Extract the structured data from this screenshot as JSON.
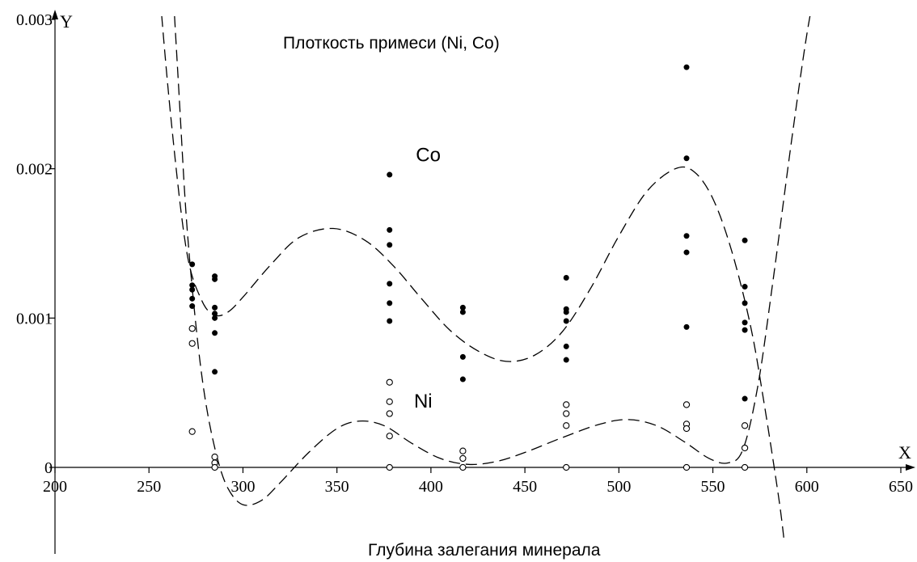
{
  "chart_data": {
    "type": "scatter",
    "title": "Плоткость примеси (Ni, Co)",
    "xlabel": "Глубина залегания минерала",
    "x_axis_letter": "X",
    "y_axis_letter": "Y",
    "xlim": [
      200,
      660
    ],
    "ylim": [
      -0.00045,
      0.00305
    ],
    "x_ticks": [
      200,
      250,
      300,
      350,
      400,
      450,
      500,
      550,
      600,
      650
    ],
    "x_tick_labels": [
      "200",
      "250",
      "300",
      "350",
      "400",
      "450",
      "500",
      "550",
      "600",
      "650"
    ],
    "y_ticks": [
      0,
      0.001,
      0.002,
      0.003
    ],
    "y_tick_labels": [
      "0",
      "0.001",
      "0.002",
      "0.003"
    ],
    "grid": false,
    "series": [
      {
        "name": "Co",
        "marker": "filled-circle",
        "points": [
          [
            273,
            0.00136
          ],
          [
            273,
            0.00122
          ],
          [
            273,
            0.00119
          ],
          [
            273,
            0.00113
          ],
          [
            273,
            0.00108
          ],
          [
            285,
            0.00128
          ],
          [
            285,
            0.00126
          ],
          [
            285,
            0.00107
          ],
          [
            285,
            0.00103
          ],
          [
            285,
            0.001
          ],
          [
            285,
            0.0009
          ],
          [
            285,
            0.00064
          ],
          [
            378,
            0.00196
          ],
          [
            378,
            0.00159
          ],
          [
            378,
            0.00149
          ],
          [
            378,
            0.00123
          ],
          [
            378,
            0.0011
          ],
          [
            378,
            0.00098
          ],
          [
            417,
            0.00107
          ],
          [
            417,
            0.00104
          ],
          [
            417,
            0.00074
          ],
          [
            417,
            0.00059
          ],
          [
            472,
            0.00127
          ],
          [
            472,
            0.00106
          ],
          [
            472,
            0.00104
          ],
          [
            472,
            0.00098
          ],
          [
            472,
            0.00081
          ],
          [
            472,
            0.00072
          ],
          [
            536,
            0.00268
          ],
          [
            536,
            0.00207
          ],
          [
            536,
            0.00155
          ],
          [
            536,
            0.00144
          ],
          [
            536,
            0.00094
          ],
          [
            567,
            0.00152
          ],
          [
            567,
            0.00121
          ],
          [
            567,
            0.0011
          ],
          [
            567,
            0.00097
          ],
          [
            567,
            0.00092
          ],
          [
            567,
            0.00046
          ]
        ],
        "fit_curve": [
          [
            248,
            0.0045
          ],
          [
            255,
            0.0033
          ],
          [
            262,
            0.0023
          ],
          [
            270,
            0.00145
          ],
          [
            278,
            0.00112
          ],
          [
            285,
            0.00102
          ],
          [
            292,
            0.00104
          ],
          [
            300,
            0.00114
          ],
          [
            315,
            0.00136
          ],
          [
            330,
            0.00154
          ],
          [
            348,
            0.0016
          ],
          [
            365,
            0.00152
          ],
          [
            380,
            0.00135
          ],
          [
            395,
            0.00113
          ],
          [
            410,
            0.00092
          ],
          [
            425,
            0.00078
          ],
          [
            440,
            0.00071
          ],
          [
            455,
            0.00075
          ],
          [
            470,
            0.00091
          ],
          [
            485,
            0.0012
          ],
          [
            500,
            0.00155
          ],
          [
            515,
            0.00185
          ],
          [
            530,
            0.002
          ],
          [
            540,
            0.00198
          ],
          [
            550,
            0.0018
          ],
          [
            560,
            0.00145
          ],
          [
            570,
            0.00095
          ],
          [
            577,
            0.00045
          ],
          [
            585,
            -0.0002
          ],
          [
            588,
            -0.0005
          ]
        ]
      },
      {
        "name": "Ni",
        "marker": "open-circle",
        "points": [
          [
            273,
            0.00093
          ],
          [
            273,
            0.00083
          ],
          [
            273,
            0.00024
          ],
          [
            285,
            7e-05
          ],
          [
            285,
            3e-05
          ],
          [
            285,
            0.0
          ],
          [
            378,
            0.00057
          ],
          [
            378,
            0.00044
          ],
          [
            378,
            0.00036
          ],
          [
            378,
            0.00021
          ],
          [
            378,
            0.0
          ],
          [
            417,
            0.00011
          ],
          [
            417,
            6e-05
          ],
          [
            417,
            0.0
          ],
          [
            472,
            0.00042
          ],
          [
            472,
            0.00036
          ],
          [
            472,
            0.00028
          ],
          [
            472,
            0.0
          ],
          [
            536,
            0.00042
          ],
          [
            536,
            0.00029
          ],
          [
            536,
            0.00026
          ],
          [
            536,
            0.0
          ],
          [
            567,
            0.00028
          ],
          [
            567,
            0.00013
          ],
          [
            567,
            0.0
          ]
        ],
        "fit_curve": [
          [
            258,
            0.0045
          ],
          [
            262,
            0.0034
          ],
          [
            266,
            0.0025
          ],
          [
            270,
            0.00165
          ],
          [
            275,
            0.00095
          ],
          [
            280,
            0.00045
          ],
          [
            286,
            8e-05
          ],
          [
            292,
            -0.00014
          ],
          [
            300,
            -0.00025
          ],
          [
            310,
            -0.00022
          ],
          [
            320,
            -0.0001
          ],
          [
            335,
            0.0001
          ],
          [
            350,
            0.00026
          ],
          [
            362,
            0.00031
          ],
          [
            375,
            0.00028
          ],
          [
            390,
            0.00016
          ],
          [
            405,
            6e-05
          ],
          [
            420,
            2e-05
          ],
          [
            435,
            4e-05
          ],
          [
            450,
            0.0001
          ],
          [
            470,
            0.0002
          ],
          [
            490,
            0.00029
          ],
          [
            505,
            0.00032
          ],
          [
            520,
            0.00028
          ],
          [
            535,
            0.00017
          ],
          [
            548,
            6e-05
          ],
          [
            558,
            3e-05
          ],
          [
            566,
            0.00012
          ],
          [
            574,
            0.00055
          ],
          [
            582,
            0.00125
          ],
          [
            592,
            0.0022
          ],
          [
            600,
            0.0029
          ],
          [
            606,
            0.0033
          ]
        ]
      }
    ],
    "annotations": [
      {
        "text": "Co",
        "x": 392,
        "y": 0.00205
      },
      {
        "text": "Ni",
        "x": 391,
        "y": 0.0004
      }
    ]
  }
}
